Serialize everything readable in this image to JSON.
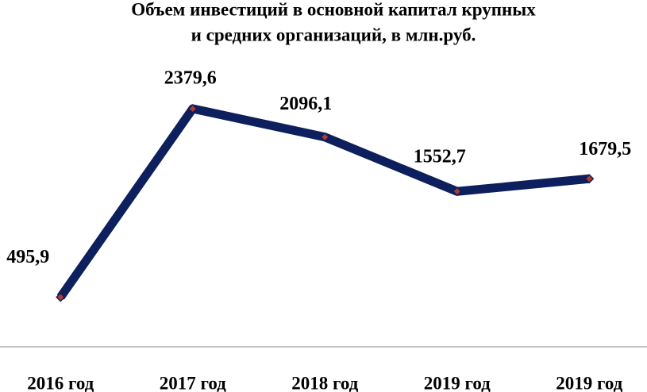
{
  "chart_data": {
    "type": "line",
    "title": [
      "Объем инвестиций в основной капитал крупных",
      "и средних организаций, в млн.руб."
    ],
    "categories": [
      "2016 год",
      "2017 год",
      "2018 год",
      "2019 год",
      "2019 год"
    ],
    "series": [
      {
        "color": "#0d1f5c",
        "marker_color": "#b03a2e",
        "values": [
          495.9,
          2379.6,
          2096.1,
          1552.7,
          1679.5
        ],
        "value_labels": [
          "495,9",
          "2379,6",
          "2096,1",
          "1552,7",
          "1679,5"
        ]
      }
    ]
  }
}
